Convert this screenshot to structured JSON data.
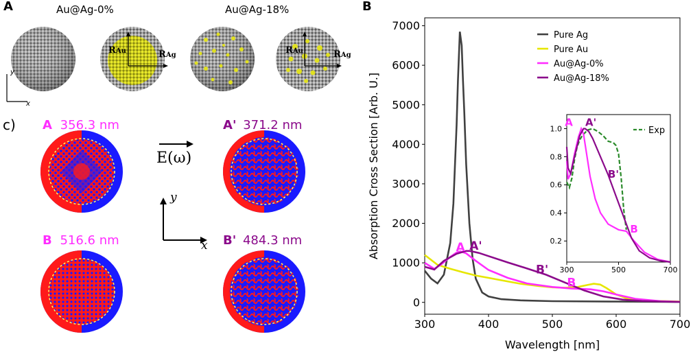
{
  "panels": {
    "a_label": "A",
    "b_label": "B",
    "c_label": "c)"
  },
  "panel_a": {
    "title_left": "Au@Ag-0%",
    "title_right": "Au@Ag-18%",
    "r_au": "R",
    "r_au_sub": "Au",
    "r_ag": "R",
    "r_ag_sub": "Ag",
    "axis_x": "x",
    "axis_y": "y",
    "colors": {
      "silver": "#9a9a9a",
      "gold": "#d8d820"
    }
  },
  "panel_c": {
    "field_label": "E(ω)",
    "axis_x": "x",
    "axis_y": "y",
    "modes": [
      {
        "letter": "A",
        "prime": "",
        "wavelength": "356.3 nm",
        "color": "#ff2dff"
      },
      {
        "letter": "A",
        "prime": "'",
        "wavelength": "371.2 nm",
        "color": "#8b0a8b"
      },
      {
        "letter": "B",
        "prime": "",
        "wavelength": "516.6 nm",
        "color": "#ff2dff"
      },
      {
        "letter": "B",
        "prime": "'",
        "wavelength": "484.3 nm",
        "color": "#8b0a8b"
      }
    ],
    "colors": {
      "red": "#ff1a1a",
      "blue": "#1a1aff",
      "ring": "#ffff66"
    }
  },
  "chart_data": [
    {
      "type": "line",
      "id": "main",
      "xlabel": "Wavelength [nm]",
      "ylabel": "Absorption Cross Section [Arb. U.]",
      "xlim": [
        300,
        700
      ],
      "ylim": [
        -300,
        7200
      ],
      "xticks": [
        300,
        400,
        500,
        600,
        700
      ],
      "yticks": [
        0,
        1000,
        2000,
        3000,
        4000,
        5000,
        6000,
        7000
      ],
      "legend_position": "top-right",
      "series": [
        {
          "name": "Pure Ag",
          "color": "#404040",
          "x": [
            300,
            310,
            320,
            330,
            340,
            345,
            350,
            352,
            355,
            358,
            360,
            362,
            365,
            370,
            375,
            380,
            390,
            400,
            420,
            450,
            500,
            600,
            700
          ],
          "y": [
            800,
            600,
            480,
            700,
            1500,
            2500,
            4500,
            5600,
            6850,
            6500,
            5600,
            4800,
            3500,
            2000,
            1100,
            600,
            250,
            150,
            80,
            50,
            30,
            20,
            10
          ]
        },
        {
          "name": "Pure Au",
          "color": "#e6e600",
          "x": [
            300,
            320,
            340,
            360,
            380,
            400,
            420,
            450,
            480,
            500,
            520,
            540,
            555,
            565,
            575,
            585,
            600,
            620,
            650,
            700
          ],
          "y": [
            1200,
            950,
            850,
            760,
            680,
            620,
            560,
            470,
            410,
            380,
            370,
            390,
            440,
            470,
            450,
            360,
            200,
            80,
            40,
            20
          ]
        },
        {
          "name": "Au@Ag-0%",
          "color": "#ff2dff",
          "x": [
            300,
            315,
            325,
            340,
            350,
            356,
            365,
            380,
            400,
            430,
            460,
            500,
            530,
            560,
            580,
            600,
            630,
            670,
            700
          ],
          "y": [
            1000,
            850,
            950,
            1150,
            1260,
            1290,
            1240,
            1050,
            820,
            620,
            480,
            390,
            350,
            330,
            280,
            200,
            90,
            30,
            15
          ]
        },
        {
          "name": "Au@Ag-18%",
          "color": "#8b0a8b",
          "x": [
            300,
            315,
            330,
            350,
            365,
            371,
            385,
            400,
            430,
            460,
            490,
            520,
            550,
            580,
            610,
            640,
            670,
            700
          ],
          "y": [
            900,
            830,
            1050,
            1230,
            1300,
            1300,
            1250,
            1170,
            1010,
            860,
            700,
            500,
            300,
            150,
            70,
            35,
            20,
            10
          ]
        }
      ],
      "annotations": [
        {
          "text": "A",
          "color": "#ff2dff",
          "x": 356,
          "y": 1300
        },
        {
          "text": "A'",
          "color": "#8b0a8b",
          "x": 380,
          "y": 1330
        },
        {
          "text": "B'",
          "color": "#8b0a8b",
          "x": 484,
          "y": 730
        },
        {
          "text": "B",
          "color": "#ff2dff",
          "x": 530,
          "y": 400
        }
      ]
    },
    {
      "type": "line",
      "id": "inset",
      "xlim": [
        300,
        700
      ],
      "ylim": [
        0.05,
        1.1
      ],
      "xticks": [
        300,
        500,
        700
      ],
      "yticks": [
        0.2,
        0.4,
        0.6,
        0.8,
        1.0
      ],
      "legend_position": "top-right",
      "series": [
        {
          "name": "Exp",
          "color": "#2a8a2a",
          "dashed": true,
          "x": [
            300,
            310,
            320,
            330,
            340,
            350,
            360,
            380,
            400,
            420,
            440,
            460,
            480,
            490,
            500,
            510,
            520,
            530
          ],
          "y": [
            0.62,
            0.58,
            0.65,
            0.78,
            0.87,
            0.92,
            0.95,
            0.99,
            1.0,
            0.98,
            0.95,
            0.91,
            0.9,
            0.88,
            0.82,
            0.65,
            0.42,
            0.28
          ]
        },
        {
          "name": "Au@Ag-0%",
          "color": "#ff2dff",
          "dashed": false,
          "x": [
            300,
            305,
            315,
            330,
            345,
            356,
            365,
            375,
            390,
            410,
            430,
            460,
            500,
            530,
            560,
            600,
            650,
            700
          ],
          "y": [
            0.77,
            0.64,
            0.68,
            0.82,
            0.94,
            1.0,
            0.96,
            0.84,
            0.66,
            0.5,
            0.4,
            0.32,
            0.28,
            0.27,
            0.2,
            0.12,
            0.07,
            0.05
          ]
        },
        {
          "name": "Au@Ag-18%",
          "color": "#8b0a8b",
          "dashed": false,
          "x": [
            300,
            305,
            315,
            330,
            350,
            365,
            371,
            385,
            400,
            430,
            460,
            490,
            520,
            550,
            580,
            620,
            660,
            700
          ],
          "y": [
            0.87,
            0.72,
            0.68,
            0.8,
            0.95,
            1.0,
            1.0,
            0.98,
            0.93,
            0.8,
            0.67,
            0.52,
            0.37,
            0.22,
            0.13,
            0.08,
            0.06,
            0.05
          ]
        }
      ],
      "annotations": [
        {
          "text": "A",
          "color": "#ff2dff",
          "x": 308,
          "y": 1.02
        },
        {
          "text": "A'",
          "color": "#8b0a8b",
          "x": 393,
          "y": 1.02
        },
        {
          "text": "B'",
          "color": "#8b0a8b",
          "x": 480,
          "y": 0.65
        },
        {
          "text": "B",
          "color": "#ff2dff",
          "x": 560,
          "y": 0.26
        }
      ]
    }
  ]
}
